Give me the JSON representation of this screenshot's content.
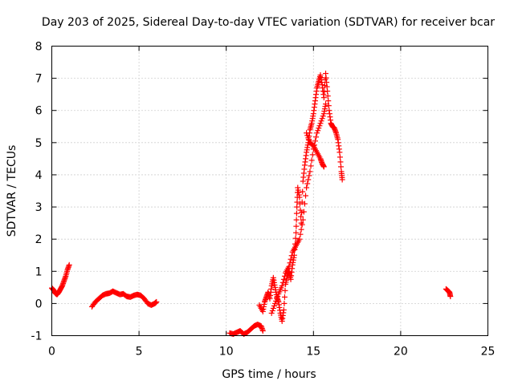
{
  "chart_data": {
    "type": "scatter",
    "title": "Day 203 of 2025, Sidereal Day-to-day VTEC variation (SDTVAR) for receiver bcar",
    "xlabel": "GPS time / hours",
    "ylabel": "SDTVAR / TECUs",
    "xlim": [
      0,
      25
    ],
    "ylim": [
      -1,
      8
    ],
    "xticks": [
      0,
      5,
      10,
      15,
      20,
      25
    ],
    "yticks": [
      -1,
      0,
      1,
      2,
      3,
      4,
      5,
      6,
      7,
      8
    ],
    "grid": true,
    "marker": "+",
    "series": [
      {
        "name": "SDTVAR",
        "color": "#ff0000",
        "segments": [
          [
            [
              0.0,
              0.48
            ],
            [
              0.1,
              0.42
            ],
            [
              0.2,
              0.32
            ],
            [
              0.3,
              0.28
            ],
            [
              0.4,
              0.35
            ],
            [
              0.5,
              0.45
            ],
            [
              0.6,
              0.55
            ],
            [
              0.7,
              0.7
            ],
            [
              0.8,
              0.85
            ],
            [
              0.9,
              1.05
            ],
            [
              1.0,
              1.2
            ]
          ],
          [
            [
              2.3,
              -0.1
            ],
            [
              2.5,
              0.05
            ],
            [
              2.7,
              0.15
            ],
            [
              2.9,
              0.25
            ],
            [
              3.1,
              0.3
            ],
            [
              3.3,
              0.32
            ],
            [
              3.5,
              0.38
            ],
            [
              3.7,
              0.33
            ],
            [
              3.9,
              0.28
            ],
            [
              4.1,
              0.3
            ],
            [
              4.3,
              0.22
            ],
            [
              4.5,
              0.2
            ],
            [
              4.7,
              0.25
            ],
            [
              4.9,
              0.28
            ],
            [
              5.1,
              0.25
            ],
            [
              5.3,
              0.15
            ],
            [
              5.5,
              0.0
            ],
            [
              5.7,
              -0.05
            ],
            [
              5.9,
              0.0
            ],
            [
              6.0,
              0.05
            ]
          ],
          [
            [
              10.2,
              -0.92
            ],
            [
              10.4,
              -0.95
            ],
            [
              10.6,
              -0.9
            ],
            [
              10.8,
              -0.85
            ],
            [
              11.0,
              -0.95
            ],
            [
              11.2,
              -0.9
            ],
            [
              11.4,
              -0.8
            ],
            [
              11.6,
              -0.7
            ],
            [
              11.8,
              -0.65
            ],
            [
              12.0,
              -0.7
            ],
            [
              12.1,
              -0.85
            ]
          ],
          [
            [
              11.9,
              -0.05
            ],
            [
              12.1,
              -0.25
            ],
            [
              12.2,
              0.05
            ],
            [
              12.3,
              0.2
            ],
            [
              12.4,
              0.35
            ],
            [
              12.5,
              0.15
            ],
            [
              12.6,
              0.55
            ],
            [
              12.7,
              0.8
            ],
            [
              12.8,
              0.5
            ],
            [
              12.9,
              0.2
            ],
            [
              13.0,
              0.05
            ],
            [
              13.1,
              -0.3
            ],
            [
              13.2,
              -0.55
            ],
            [
              13.3,
              -0.2
            ],
            [
              13.4,
              0.6
            ],
            [
              13.5,
              0.85
            ],
            [
              13.6,
              1.0
            ],
            [
              13.7,
              0.75
            ],
            [
              13.8,
              1.2
            ],
            [
              13.9,
              1.5
            ],
            [
              14.0,
              2.2
            ],
            [
              14.05,
              3.0
            ],
            [
              14.1,
              3.6
            ],
            [
              14.2,
              3.3
            ],
            [
              14.3,
              2.5
            ],
            [
              14.4,
              3.8
            ],
            [
              14.5,
              4.3
            ],
            [
              14.6,
              4.7
            ],
            [
              14.7,
              5.0
            ],
            [
              14.8,
              5.4
            ],
            [
              14.9,
              5.6
            ],
            [
              15.0,
              5.9
            ],
            [
              15.1,
              6.3
            ],
            [
              15.2,
              6.7
            ],
            [
              15.3,
              6.9
            ],
            [
              15.4,
              7.1
            ],
            [
              15.5,
              6.8
            ],
            [
              15.6,
              6.4
            ],
            [
              15.7,
              7.15
            ],
            [
              15.8,
              6.6
            ],
            [
              15.9,
              6.0
            ],
            [
              16.0,
              5.6
            ],
            [
              16.1,
              5.5
            ],
            [
              16.2,
              5.45
            ],
            [
              16.3,
              5.3
            ],
            [
              16.4,
              5.1
            ],
            [
              16.5,
              4.7
            ],
            [
              16.6,
              4.1
            ],
            [
              16.65,
              3.85
            ]
          ],
          [
            [
              14.6,
              5.3
            ],
            [
              14.8,
              5.0
            ],
            [
              15.0,
              4.9
            ],
            [
              15.2,
              4.7
            ],
            [
              15.4,
              4.5
            ],
            [
              15.5,
              4.35
            ],
            [
              15.6,
              4.25
            ]
          ],
          [
            [
              12.6,
              -0.3
            ],
            [
              12.8,
              0.0
            ],
            [
              13.0,
              0.3
            ],
            [
              13.2,
              0.55
            ],
            [
              13.4,
              0.95
            ],
            [
              13.6,
              1.15
            ],
            [
              13.8,
              1.6
            ],
            [
              14.0,
              1.8
            ],
            [
              14.2,
              2.0
            ],
            [
              14.4,
              2.6
            ],
            [
              14.6,
              3.6
            ],
            [
              14.8,
              4.1
            ],
            [
              15.0,
              4.8
            ],
            [
              15.2,
              5.3
            ],
            [
              15.4,
              5.6
            ],
            [
              15.6,
              5.9
            ],
            [
              15.7,
              6.2
            ]
          ],
          [
            [
              22.6,
              0.45
            ],
            [
              22.7,
              0.4
            ],
            [
              22.8,
              0.35
            ],
            [
              22.85,
              0.22
            ]
          ]
        ]
      }
    ]
  }
}
